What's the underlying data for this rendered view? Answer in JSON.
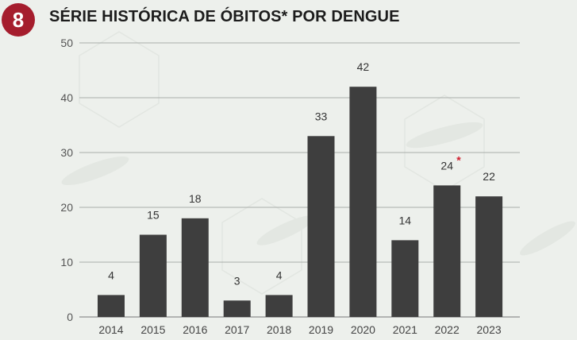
{
  "header": {
    "badge": "8",
    "title": "SÉRIE HISTÓRICA DE ÓBITOS* POR DENGUE"
  },
  "colors": {
    "bar": "#3e3e3e",
    "badge": "#a51d2d",
    "asterisk": "#d11f2f",
    "grid": "#a9aeaa"
  },
  "chart_data": {
    "type": "bar",
    "title": "SÉRIE HISTÓRICA DE ÓBITOS* POR DENGUE",
    "categories": [
      "2014",
      "2015",
      "2016",
      "2017",
      "2018",
      "2019",
      "2020",
      "2021",
      "2022",
      "2023"
    ],
    "values": [
      4,
      15,
      18,
      3,
      4,
      33,
      42,
      14,
      24,
      22
    ],
    "data_labels": [
      "4",
      "15",
      "18",
      "3",
      "4",
      "33",
      "42",
      "14",
      "24",
      "22"
    ],
    "ylim": [
      0,
      50
    ],
    "yticks": [
      0,
      10,
      20,
      30,
      40,
      50
    ],
    "grid": true,
    "annotations": [
      {
        "category": "2022",
        "text": "*"
      }
    ]
  }
}
